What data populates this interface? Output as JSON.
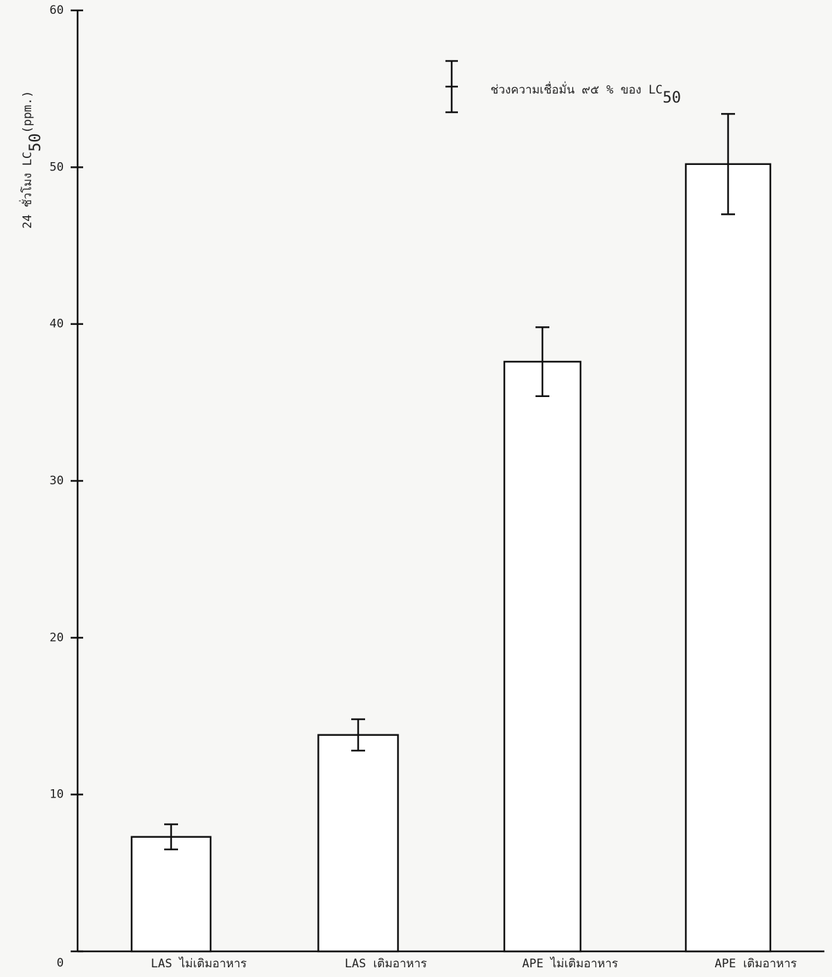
{
  "chart_data": {
    "type": "bar",
    "ylabel": {
      "text": "24 ชั่วโมง LC",
      "subscript": "50",
      "suffix": "(ppm.)"
    },
    "legend": {
      "text": "ช่วงความเชื่อมั่น ๙๕ % ของ LC",
      "subscript": "50"
    },
    "categories": [
      "LAS ไม่เติมอาหาร",
      "LAS เติมอาหาร",
      "APE ไม่เติมอาหาร",
      "APE เติมอาหาร"
    ],
    "values": [
      7.3,
      13.8,
      37.6,
      50.2
    ],
    "errors": [
      0.8,
      1.0,
      2.2,
      3.2
    ],
    "color": "#ffffff",
    "ylim": [
      0,
      60
    ],
    "yticks": [
      0,
      10,
      20,
      30,
      40,
      50,
      60
    ]
  }
}
